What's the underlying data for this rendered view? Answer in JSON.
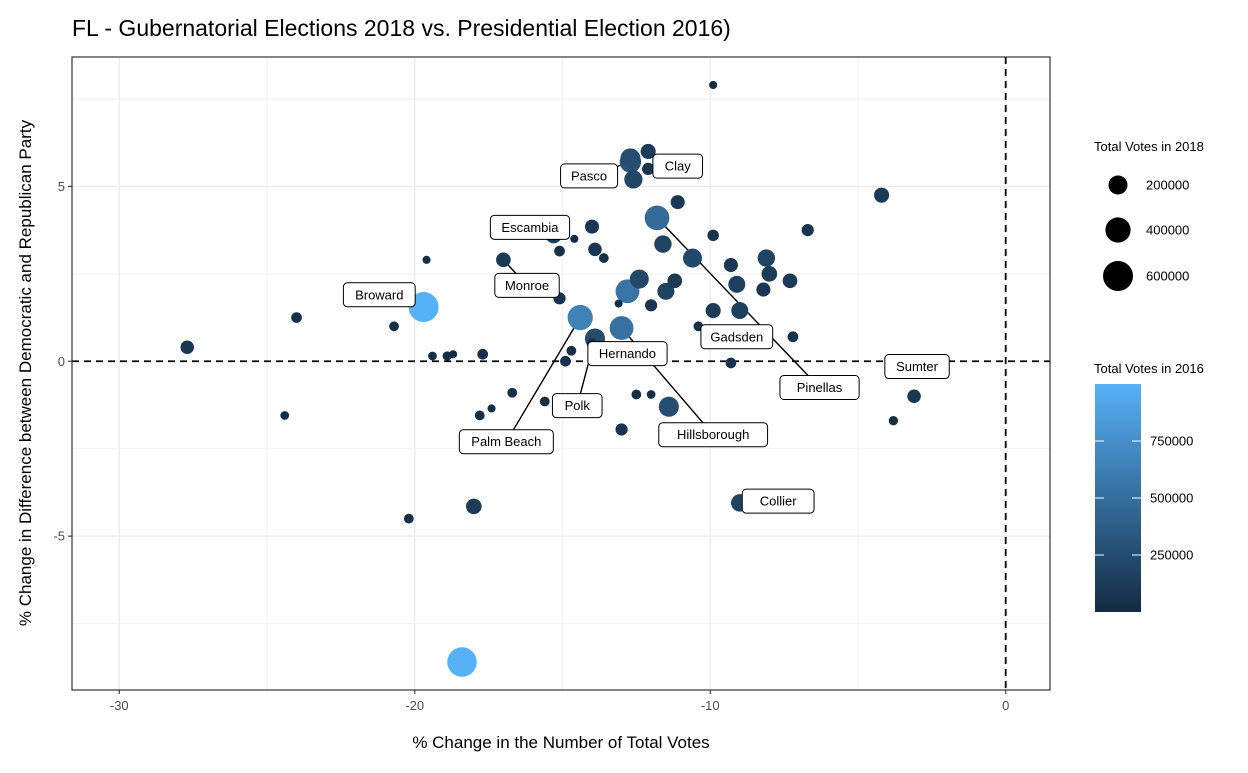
{
  "chart_data": {
    "type": "scatter",
    "title": "FL - Gubernatorial Elections 2018 vs. Presidential Election 2016)",
    "xlabel": "% Change in the Number of Total Votes",
    "ylabel": "% Change in Difference between Democratic and Republican Party",
    "xlim": [
      -31.6,
      1.5
    ],
    "ylim": [
      -9.4,
      8.7
    ],
    "x_ticks": [
      -30,
      -20,
      -10,
      0
    ],
    "x_tick_labels": [
      "-30",
      "-20",
      "-10",
      "0"
    ],
    "y_ticks": [
      -5,
      0,
      5
    ],
    "y_tick_labels": [
      "-5",
      "0",
      "5"
    ],
    "grid": true,
    "reference_lines": {
      "x": 0,
      "y": 0,
      "style": "dashed"
    },
    "legend_placement": "right",
    "size_legend": {
      "title": "Total Votes in 2018",
      "breaks": [
        200000,
        400000,
        600000
      ],
      "labels": [
        "200000",
        "400000",
        "600000"
      ]
    },
    "color_legend": {
      "title": "Total Votes in 2016",
      "breaks": [
        250000,
        500000,
        750000
      ],
      "labels": [
        "250000",
        "500000",
        "750000"
      ],
      "range": [
        0,
        1000000
      ],
      "low_color": "#132B43",
      "high_color": "#56B1F7"
    },
    "points": [
      {
        "x": -9.9,
        "y": 7.9,
        "v2018": 15000,
        "v2016": 18000
      },
      {
        "x": -12.7,
        "y": 5.8,
        "v2018": 230000,
        "v2016": 250000
      },
      {
        "x": -12.1,
        "y": 6.0,
        "v2018": 110000,
        "v2016": 125000,
        "label": "Clay"
      },
      {
        "x": -12.6,
        "y": 5.2,
        "v2018": 180000,
        "v2016": 200000
      },
      {
        "x": -12.1,
        "y": 5.5,
        "v2018": 60000,
        "v2016": 70000
      },
      {
        "x": -12.7,
        "y": 5.7,
        "v2018": 270000,
        "v2016": 300000,
        "label": "Pasco"
      },
      {
        "x": -4.2,
        "y": 4.75,
        "v2018": 110000,
        "v2016": 120000
      },
      {
        "x": -11.1,
        "y": 4.55,
        "v2018": 90000,
        "v2016": 100000
      },
      {
        "x": -11.8,
        "y": 4.1,
        "v2018": 380000,
        "v2016": 480000,
        "label": "Pinellas"
      },
      {
        "x": -14.0,
        "y": 3.85,
        "v2018": 90000,
        "v2016": 100000
      },
      {
        "x": -15.3,
        "y": 3.6,
        "v2018": 130000,
        "v2016": 150000,
        "label": "Escambia"
      },
      {
        "x": -9.9,
        "y": 3.6,
        "v2018": 50000,
        "v2016": 60000
      },
      {
        "x": -6.7,
        "y": 3.75,
        "v2018": 60000,
        "v2016": 70000
      },
      {
        "x": -14.6,
        "y": 3.5,
        "v2018": 15000,
        "v2016": 18000
      },
      {
        "x": -11.6,
        "y": 3.35,
        "v2018": 160000,
        "v2016": 180000
      },
      {
        "x": -13.9,
        "y": 3.2,
        "v2018": 80000,
        "v2016": 90000
      },
      {
        "x": -15.1,
        "y": 3.15,
        "v2018": 40000,
        "v2016": 45000
      },
      {
        "x": -13.6,
        "y": 2.95,
        "v2018": 30000,
        "v2016": 35000
      },
      {
        "x": -17.0,
        "y": 2.9,
        "v2018": 100000,
        "v2016": 110000,
        "label": "Monroe"
      },
      {
        "x": -10.6,
        "y": 2.95,
        "v2018": 200000,
        "v2016": 220000
      },
      {
        "x": -8.1,
        "y": 2.95,
        "v2018": 160000,
        "v2016": 180000
      },
      {
        "x": -19.6,
        "y": 2.9,
        "v2018": 15000,
        "v2016": 18000
      },
      {
        "x": -9.3,
        "y": 2.75,
        "v2018": 90000,
        "v2016": 100000
      },
      {
        "x": -8.0,
        "y": 2.5,
        "v2018": 120000,
        "v2016": 130000
      },
      {
        "x": -12.4,
        "y": 2.35,
        "v2018": 200000,
        "v2016": 220000
      },
      {
        "x": -11.2,
        "y": 2.3,
        "v2018": 100000,
        "v2016": 110000
      },
      {
        "x": -7.3,
        "y": 2.3,
        "v2018": 100000,
        "v2016": 110000
      },
      {
        "x": -9.1,
        "y": 2.2,
        "v2018": 150000,
        "v2016": 160000
      },
      {
        "x": -12.8,
        "y": 2.0,
        "v2018": 350000,
        "v2016": 550000
      },
      {
        "x": -11.5,
        "y": 2.0,
        "v2018": 150000,
        "v2016": 170000
      },
      {
        "x": -8.2,
        "y": 2.05,
        "v2018": 90000,
        "v2016": 100000
      },
      {
        "x": -15.1,
        "y": 1.8,
        "v2018": 60000,
        "v2016": 70000
      },
      {
        "x": -19.7,
        "y": 1.55,
        "v2018": 600000,
        "v2016": 1000000,
        "label": "Broward"
      },
      {
        "x": -12.0,
        "y": 1.6,
        "v2018": 60000,
        "v2016": 70000
      },
      {
        "x": -9.9,
        "y": 1.45,
        "v2018": 110000,
        "v2016": 120000
      },
      {
        "x": -9.0,
        "y": 1.45,
        "v2018": 150000,
        "v2016": 160000
      },
      {
        "x": -24.0,
        "y": 1.25,
        "v2018": 40000,
        "v2016": 45000
      },
      {
        "x": -14.4,
        "y": 1.25,
        "v2018": 400000,
        "v2016": 650000,
        "label": "Palm Beach"
      },
      {
        "x": -13.1,
        "y": 1.65,
        "v2018": 15000,
        "v2016": 18000
      },
      {
        "x": -13.0,
        "y": 0.95,
        "v2018": 350000,
        "v2016": 520000,
        "label": "Hillsborough"
      },
      {
        "x": -20.7,
        "y": 1.0,
        "v2018": 30000,
        "v2016": 35000
      },
      {
        "x": -10.4,
        "y": 1.0,
        "v2018": 30000,
        "v2016": 35000,
        "label": "Gadsden"
      },
      {
        "x": -13.9,
        "y": 0.65,
        "v2018": 230000,
        "v2016": 250000,
        "label": "Polk"
      },
      {
        "x": -14.0,
        "y": 0.5,
        "v2018": 40000,
        "v2016": 45000,
        "label": "Hernando"
      },
      {
        "x": -7.2,
        "y": 0.7,
        "v2018": 40000,
        "v2016": 45000
      },
      {
        "x": -14.7,
        "y": 0.3,
        "v2018": 30000,
        "v2016": 35000
      },
      {
        "x": -27.7,
        "y": 0.4,
        "v2018": 80000,
        "v2016": 90000
      },
      {
        "x": -19.4,
        "y": 0.15,
        "v2018": 20000,
        "v2016": 24000
      },
      {
        "x": -18.9,
        "y": 0.15,
        "v2018": 25000,
        "v2016": 28000
      },
      {
        "x": -18.7,
        "y": 0.2,
        "v2018": 15000,
        "v2016": 18000
      },
      {
        "x": -17.7,
        "y": 0.2,
        "v2018": 40000,
        "v2016": 45000
      },
      {
        "x": -14.9,
        "y": 0.0,
        "v2018": 40000,
        "v2016": 45000
      },
      {
        "x": -9.3,
        "y": -0.05,
        "v2018": 40000,
        "v2016": 45000
      },
      {
        "x": -3.8,
        "y": 0.0,
        "v2018": 60000,
        "v2016": 70000,
        "label": "Sumter"
      },
      {
        "x": -16.7,
        "y": -0.9,
        "v2018": 30000,
        "v2016": 35000
      },
      {
        "x": -12.5,
        "y": -0.95,
        "v2018": 30000,
        "v2016": 35000
      },
      {
        "x": -12.0,
        "y": -0.95,
        "v2018": 20000,
        "v2016": 24000
      },
      {
        "x": -3.1,
        "y": -1.0,
        "v2018": 80000,
        "v2016": 90000
      },
      {
        "x": -15.6,
        "y": -1.15,
        "v2018": 30000,
        "v2016": 35000
      },
      {
        "x": -11.4,
        "y": -1.3,
        "v2018": 230000,
        "v2016": 260000
      },
      {
        "x": -17.4,
        "y": -1.35,
        "v2018": 15000,
        "v2016": 18000
      },
      {
        "x": -24.4,
        "y": -1.55,
        "v2018": 20000,
        "v2016": 24000
      },
      {
        "x": -17.8,
        "y": -1.55,
        "v2018": 30000,
        "v2016": 35000
      },
      {
        "x": -3.8,
        "y": -1.7,
        "v2018": 25000,
        "v2016": 28000
      },
      {
        "x": -13.0,
        "y": -1.95,
        "v2018": 60000,
        "v2016": 70000
      },
      {
        "x": -9.0,
        "y": -4.05,
        "v2018": 160000,
        "v2016": 180000,
        "label": "Collier"
      },
      {
        "x": -18.0,
        "y": -4.15,
        "v2018": 120000,
        "v2016": 130000
      },
      {
        "x": -20.2,
        "y": -4.5,
        "v2018": 30000,
        "v2016": 35000
      },
      {
        "x": -18.4,
        "y": -8.6,
        "v2018": 580000,
        "v2016": 1000000
      }
    ],
    "labels": [
      {
        "text": "Clay",
        "x": -11.1,
        "y": 5.58
      },
      {
        "text": "Pasco",
        "x": -14.1,
        "y": 5.3
      },
      {
        "text": "Escambia",
        "x": -16.1,
        "y": 3.83
      },
      {
        "text": "Monroe",
        "x": -16.2,
        "y": 2.17
      },
      {
        "text": "Broward",
        "x": -21.2,
        "y": 1.9
      },
      {
        "text": "Gadsden",
        "x": -9.1,
        "y": 0.7
      },
      {
        "text": "Hernando",
        "x": -12.8,
        "y": 0.22
      },
      {
        "text": "Sumter",
        "x": -3.0,
        "y": -0.15
      },
      {
        "text": "Pinellas",
        "x": -6.3,
        "y": -0.75
      },
      {
        "text": "Polk",
        "x": -14.5,
        "y": -1.27
      },
      {
        "text": "Hillsborough",
        "x": -9.9,
        "y": -2.1
      },
      {
        "text": "Palm Beach",
        "x": -16.9,
        "y": -2.3
      },
      {
        "text": "Collier",
        "x": -7.7,
        "y": -4.0
      }
    ]
  }
}
